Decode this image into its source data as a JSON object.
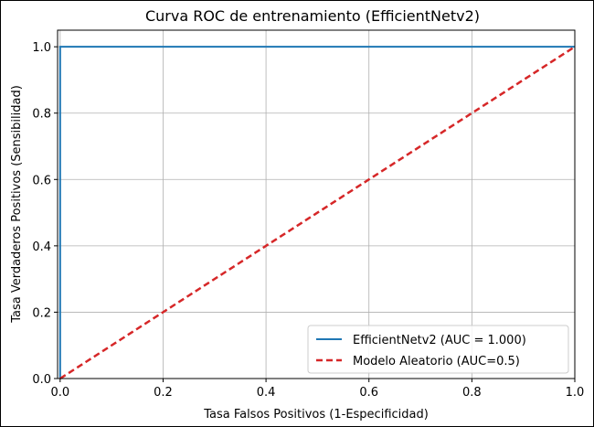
{
  "chart_data": {
    "type": "line",
    "title": "Curva ROC de entrenamiento (EfficientNetv2)",
    "xlabel": "Tasa Falsos Positivos (1-Especificidad)",
    "ylabel": "Tasa Verdaderos Positivos (Sensibilidad)",
    "xlim": [
      -0.005,
      1.0
    ],
    "ylim": [
      0.0,
      1.05
    ],
    "xticks": [
      "0.0",
      "0.2",
      "0.4",
      "0.6",
      "0.8",
      "1.0"
    ],
    "yticks": [
      "0.0",
      "0.2",
      "0.4",
      "0.6",
      "0.8",
      "1.0"
    ],
    "xtick_values": [
      0.0,
      0.2,
      0.4,
      0.6,
      0.8,
      1.0
    ],
    "ytick_values": [
      0.0,
      0.2,
      0.4,
      0.6,
      0.8,
      1.0
    ],
    "grid": true,
    "legend_position": "lower-right",
    "series": [
      {
        "name": "EfficientNetv2 (AUC = 1.000)",
        "color": "#1f77b4",
        "style": "solid",
        "x": [
          0.0,
          0.0,
          1.0
        ],
        "y": [
          0.0,
          1.0,
          1.0
        ]
      },
      {
        "name": "Modelo Aleatorio (AUC=0.5)",
        "color": "#d62728",
        "style": "dashed",
        "x": [
          0.0,
          1.0
        ],
        "y": [
          0.0,
          1.0
        ]
      }
    ]
  }
}
